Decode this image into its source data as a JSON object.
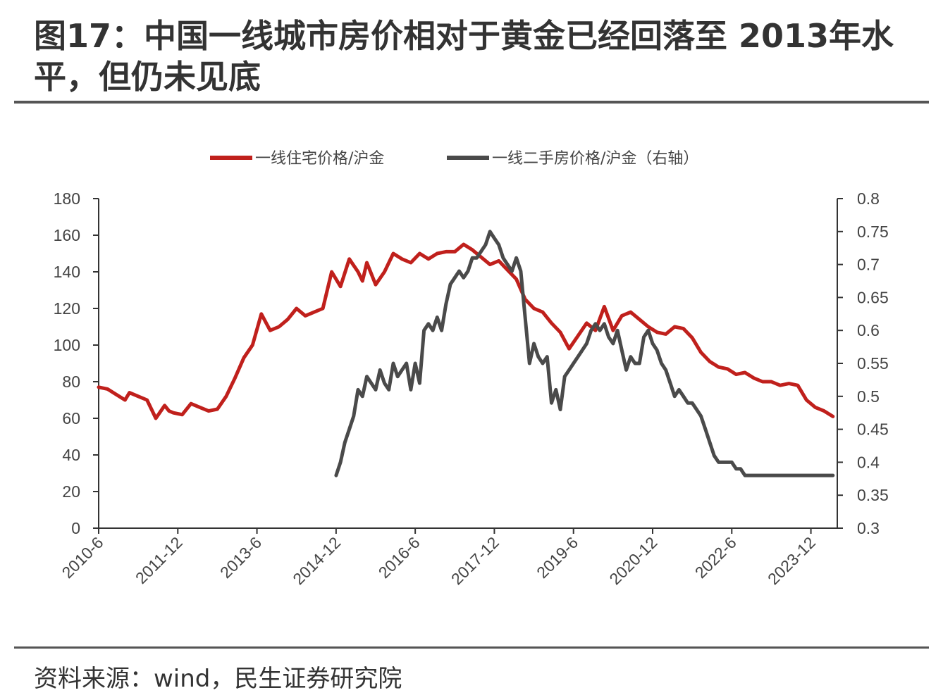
{
  "title": "图17：中国一线城市房价相对于黄金已经回落至 2013年水平，但仍未见底",
  "source": "资料来源：wind，民生证券研究院",
  "colors": {
    "series1": "#c0201c",
    "series2": "#4a4a4a",
    "axis": "#333333"
  },
  "chart_data": {
    "type": "line",
    "legend_position": "top",
    "grid": false,
    "xlim": [
      "2010-06",
      "2024-06"
    ],
    "x_ticks": [
      "2010-6",
      "2011-12",
      "2013-6",
      "2014-12",
      "2016-6",
      "2017-12",
      "2019-6",
      "2020-12",
      "2022-6",
      "2023-12"
    ],
    "y_left": {
      "ylim": [
        0,
        180
      ],
      "ticks": [
        "0",
        "20",
        "40",
        "60",
        "80",
        "100",
        "120",
        "140",
        "160",
        "180"
      ]
    },
    "y_right": {
      "ylim": [
        0.3,
        0.8
      ],
      "ticks": [
        "0.3",
        "0.35",
        "0.4",
        "0.45",
        "0.5",
        "0.55",
        "0.6",
        "0.65",
        "0.7",
        "0.75",
        "0.8"
      ]
    },
    "series": [
      {
        "name": "一线住宅价格/沪金",
        "axis": "left",
        "x": [
          "2010-06",
          "2010-08",
          "2010-10",
          "2010-12",
          "2011-01",
          "2011-03",
          "2011-05",
          "2011-07",
          "2011-09",
          "2011-10",
          "2011-11",
          "2012-01",
          "2012-03",
          "2012-05",
          "2012-07",
          "2012-09",
          "2012-11",
          "2013-01",
          "2013-03",
          "2013-05",
          "2013-07",
          "2013-09",
          "2013-11",
          "2014-01",
          "2014-03",
          "2014-05",
          "2014-07",
          "2014-09",
          "2014-11",
          "2015-01",
          "2015-03",
          "2015-05",
          "2015-06",
          "2015-07",
          "2015-09",
          "2015-11",
          "2016-01",
          "2016-03",
          "2016-05",
          "2016-07",
          "2016-09",
          "2016-11",
          "2017-01",
          "2017-03",
          "2017-05",
          "2017-07",
          "2017-09",
          "2017-11",
          "2018-01",
          "2018-03",
          "2018-05",
          "2018-07",
          "2018-09",
          "2018-11",
          "2019-01",
          "2019-03",
          "2019-05",
          "2019-07",
          "2019-09",
          "2019-11",
          "2020-01",
          "2020-03",
          "2020-05",
          "2020-07",
          "2020-09",
          "2020-11",
          "2021-01",
          "2021-03",
          "2021-05",
          "2021-07",
          "2021-09",
          "2021-11",
          "2022-01",
          "2022-03",
          "2022-05",
          "2022-07",
          "2022-09",
          "2022-11",
          "2023-01",
          "2023-03",
          "2023-05",
          "2023-07",
          "2023-09",
          "2023-11",
          "2024-01",
          "2024-03",
          "2024-05"
        ],
        "values": [
          77,
          76,
          73,
          70,
          74,
          72,
          70,
          60,
          67,
          64,
          63,
          62,
          68,
          66,
          64,
          65,
          72,
          82,
          93,
          100,
          117,
          108,
          110,
          114,
          120,
          116,
          118,
          120,
          140,
          132,
          147,
          140,
          135,
          145,
          133,
          140,
          150,
          147,
          145,
          150,
          147,
          150,
          151,
          151,
          155,
          152,
          148,
          144,
          146,
          141,
          136,
          125,
          120,
          118,
          112,
          107,
          98,
          105,
          112,
          108,
          121,
          108,
          116,
          118,
          114,
          110,
          107,
          106,
          110,
          109,
          104,
          96,
          91,
          88,
          87,
          84,
          85,
          82,
          80,
          80,
          78,
          79,
          78,
          70,
          66,
          64,
          61
        ]
      },
      {
        "name": "一线二手房价格/沪金（右轴）",
        "axis": "right",
        "x": [
          "2014-12",
          "2015-01",
          "2015-02",
          "2015-03",
          "2015-04",
          "2015-05",
          "2015-06",
          "2015-07",
          "2015-08",
          "2015-09",
          "2015-10",
          "2015-11",
          "2015-12",
          "2016-01",
          "2016-02",
          "2016-03",
          "2016-04",
          "2016-05",
          "2016-06",
          "2016-07",
          "2016-08",
          "2016-09",
          "2016-10",
          "2016-11",
          "2016-12",
          "2017-01",
          "2017-02",
          "2017-03",
          "2017-04",
          "2017-05",
          "2017-06",
          "2017-07",
          "2017-08",
          "2017-09",
          "2017-10",
          "2017-11",
          "2017-12",
          "2018-01",
          "2018-02",
          "2018-03",
          "2018-04",
          "2018-05",
          "2018-06",
          "2018-07",
          "2018-08",
          "2018-09",
          "2018-10",
          "2018-11",
          "2018-12",
          "2019-01",
          "2019-02",
          "2019-03",
          "2019-04",
          "2019-05",
          "2019-06",
          "2019-07",
          "2019-08",
          "2019-09",
          "2019-10",
          "2019-11",
          "2019-12",
          "2020-01",
          "2020-02",
          "2020-03",
          "2020-04",
          "2020-05",
          "2020-06",
          "2020-07",
          "2020-08",
          "2020-09",
          "2020-10",
          "2020-11",
          "2020-12",
          "2021-01",
          "2021-02",
          "2021-03",
          "2021-04",
          "2021-05",
          "2021-06",
          "2021-07",
          "2021-08",
          "2021-09",
          "2021-10",
          "2021-11",
          "2021-12",
          "2022-01",
          "2022-02",
          "2022-03",
          "2022-04",
          "2022-05",
          "2022-06",
          "2022-07",
          "2022-08",
          "2022-09",
          "2022-10",
          "2022-11",
          "2022-12",
          "2023-01",
          "2023-02",
          "2023-03",
          "2023-04",
          "2023-05",
          "2023-06",
          "2023-07",
          "2023-08",
          "2023-09",
          "2023-10",
          "2023-11",
          "2023-12",
          "2024-01",
          "2024-02",
          "2024-03",
          "2024-04",
          "2024-05"
        ],
        "values": [
          0.38,
          0.4,
          0.43,
          0.45,
          0.47,
          0.51,
          0.5,
          0.53,
          0.52,
          0.51,
          0.54,
          0.52,
          0.51,
          0.55,
          0.53,
          0.54,
          0.55,
          0.51,
          0.55,
          0.52,
          0.6,
          0.61,
          0.6,
          0.62,
          0.6,
          0.64,
          0.67,
          0.68,
          0.69,
          0.68,
          0.69,
          0.71,
          0.71,
          0.72,
          0.73,
          0.75,
          0.74,
          0.73,
          0.71,
          0.7,
          0.69,
          0.71,
          0.69,
          0.62,
          0.55,
          0.58,
          0.56,
          0.55,
          0.56,
          0.49,
          0.51,
          0.48,
          0.53,
          0.54,
          0.55,
          0.56,
          0.57,
          0.58,
          0.6,
          0.61,
          0.6,
          0.61,
          0.59,
          0.58,
          0.6,
          0.57,
          0.54,
          0.56,
          0.55,
          0.55,
          0.59,
          0.6,
          0.58,
          0.57,
          0.55,
          0.54,
          0.52,
          0.5,
          0.51,
          0.5,
          0.49,
          0.49,
          0.48,
          0.47,
          0.45,
          0.43,
          0.41,
          0.4,
          0.4,
          0.4,
          0.4,
          0.39,
          0.39,
          0.38,
          0.38,
          0.38,
          0.38,
          0.38,
          0.38,
          0.38,
          0.38,
          0.38,
          0.38,
          0.38,
          0.38,
          0.38,
          0.38,
          0.38,
          0.38,
          0.38,
          0.38,
          0.38,
          0.38,
          0.38
        ]
      }
    ]
  }
}
